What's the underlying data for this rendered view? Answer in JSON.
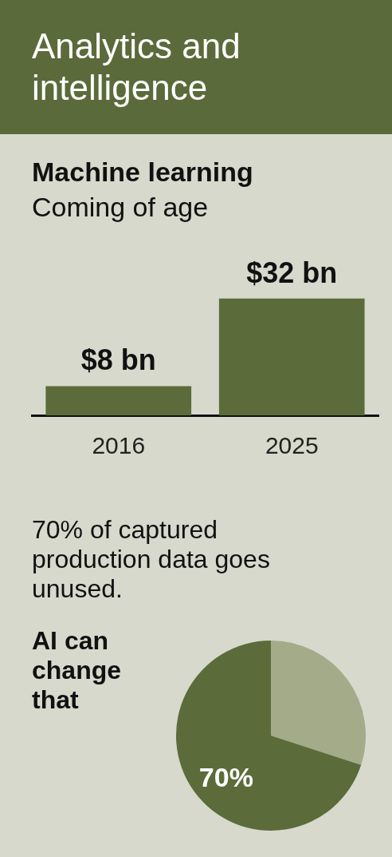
{
  "chart_data": [
    {
      "type": "bar",
      "title": "Machine learning",
      "subtitle": "Coming of age",
      "annotations": [
        "Analytics and intelligence"
      ],
      "categories": [
        "2016",
        "2025"
      ],
      "values": [
        8,
        32
      ],
      "color": "#5b6b3a",
      "value_labels": [
        "$8 bn",
        "$32 bn"
      ],
      "grid": false,
      "legend": false,
      "tick_labels": "x"
    },
    {
      "type": "pie",
      "title": "70% of captured production data goes unused.",
      "annotations": [
        "AI can change that"
      ],
      "categories": [
        null,
        null
      ],
      "values": [
        30,
        70
      ],
      "colors": [
        "#a4ab88",
        "#5b6b3a"
      ],
      "value_labels": [
        null,
        "70%"
      ],
      "legend": false
    }
  ]
}
